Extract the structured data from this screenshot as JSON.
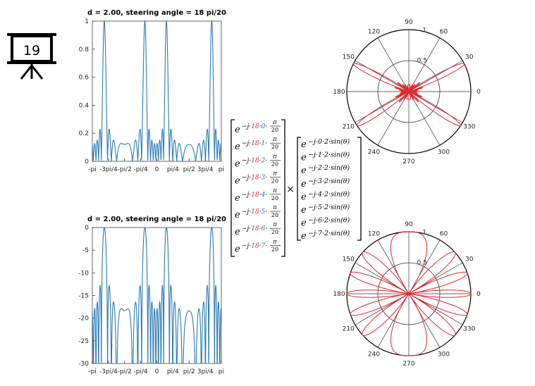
{
  "badge": {
    "number": "19"
  },
  "chart_data": [
    {
      "type": "line",
      "title": "d = 2.00, steering angle  = 18 pi/20",
      "x_tick_labels": [
        "-pi",
        "-3pi/4",
        "-pi/2",
        "-pi/4",
        "0",
        "pi/4",
        "pi/2",
        "3pi/4",
        "pi"
      ],
      "y_tick_labels": [
        "0",
        "0.2",
        "0.4",
        "0.6",
        "0.8",
        "1"
      ],
      "ylim": [
        0,
        1
      ],
      "xlim": [
        -3.1416,
        3.1416
      ],
      "series_color": "#2a7ab9"
    },
    {
      "type": "line",
      "title": "d = 2.00, steering angle  = 18 pi/20",
      "x_tick_labels": [
        "-pi",
        "-3pi/4",
        "-pi/2",
        "-pi/4",
        "0",
        "pi/4",
        "pi/2",
        "3pi/4",
        "pi"
      ],
      "y_tick_labels": [
        "0",
        "-5",
        "-10",
        "-15",
        "-20",
        "-25",
        "-30"
      ],
      "ylim": [
        -30,
        0
      ],
      "xlim": [
        -3.1416,
        3.1416
      ],
      "series_color": "#2a7ab9"
    },
    {
      "type": "polar",
      "angle_labels": [
        "90",
        "60",
        "30",
        "0",
        "330",
        "300",
        "270",
        "240",
        "210",
        "180",
        "150",
        "120"
      ],
      "radial_labels": [
        "0.5",
        "1"
      ],
      "series_color": "#e8252a"
    },
    {
      "type": "polar",
      "angle_labels": [
        "90",
        "60",
        "30",
        "0",
        "330",
        "300",
        "270",
        "240",
        "210",
        "180",
        "150",
        "120"
      ],
      "radial_labels": [
        "0.5",
        "1"
      ],
      "series_color": "#e8252a"
    }
  ],
  "equation": {
    "times": "×",
    "steering_vector": {
      "base": "e",
      "prefix": "−j·",
      "steer": "18",
      "dot": "·",
      "indices": [
        "0",
        "1",
        "2",
        "3",
        "4",
        "5",
        "6",
        "7"
      ],
      "frac_num": "π",
      "frac_den": "20"
    },
    "array_vector": {
      "base": "e",
      "prefix": "−j·",
      "indices": [
        "0",
        "1",
        "2",
        "3",
        "4",
        "5",
        "6",
        "7"
      ],
      "suffix": "·2·sin(θ)"
    }
  }
}
